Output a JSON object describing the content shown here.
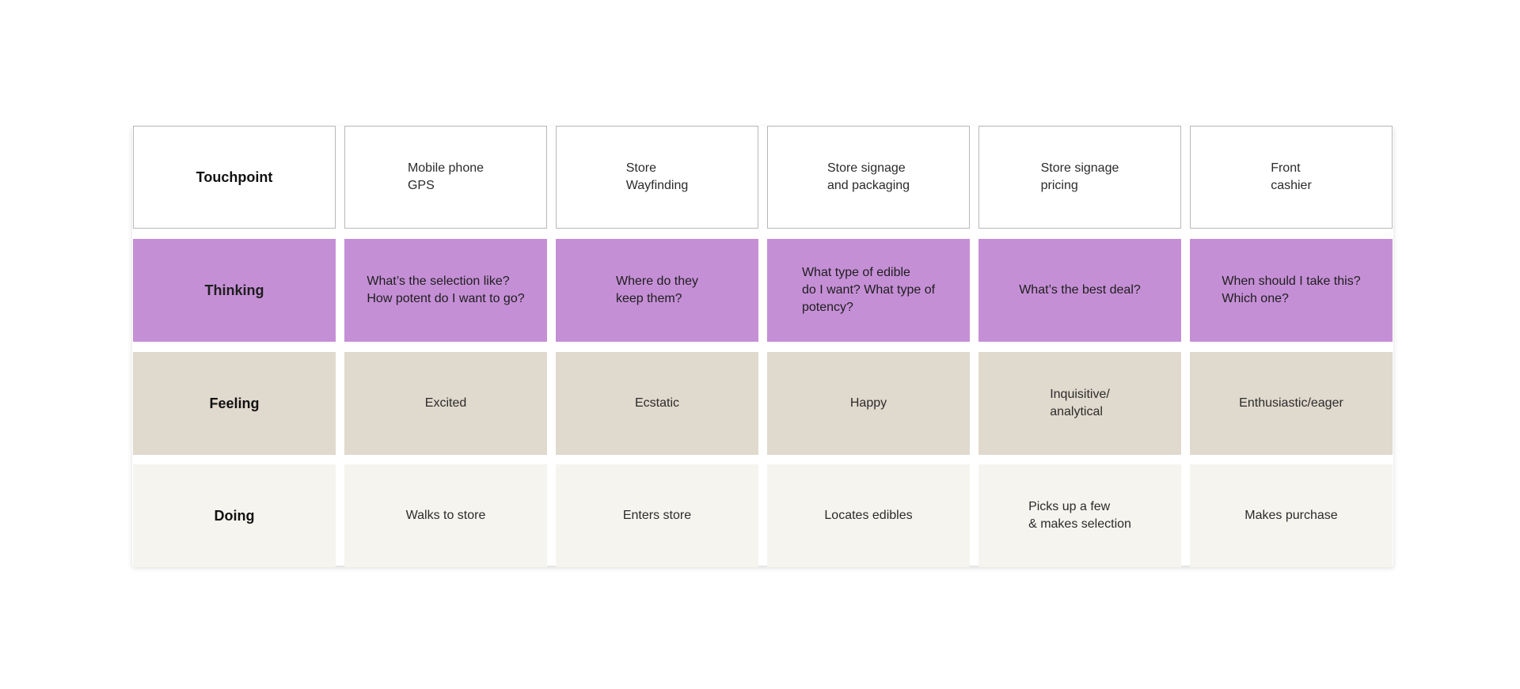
{
  "rows": {
    "touchpoint": {
      "label": "Touchpoint",
      "cells": [
        "Mobile phone\nGPS",
        "Store\nWayfinding",
        "Store signage\nand packaging",
        "Store signage\npricing",
        "Front\ncashier"
      ]
    },
    "thinking": {
      "label": "Thinking",
      "cells": [
        "What’s the selection like?\nHow potent do I want to go?",
        "Where do they\nkeep them?",
        "What type of edible\ndo I want? What type of\npotency?",
        "What’s the best deal?",
        "When should I take this?\nWhich one?"
      ]
    },
    "feeling": {
      "label": "Feeling",
      "cells": [
        "Excited",
        "Ecstatic",
        "Happy",
        "Inquisitive/\nanalytical",
        "Enthusiastic/eager"
      ]
    },
    "doing": {
      "label": "Doing",
      "cells": [
        "Walks to store",
        "Enters store",
        "Locates edibles",
        "Picks up a few\n& makes selection",
        "Makes purchase"
      ]
    }
  },
  "colors": {
    "thinking": "#c58fd6",
    "feeling": "#e0d9cd",
    "doing": "#f5f4ef",
    "touchpoint_border": "#b8b8b8"
  }
}
